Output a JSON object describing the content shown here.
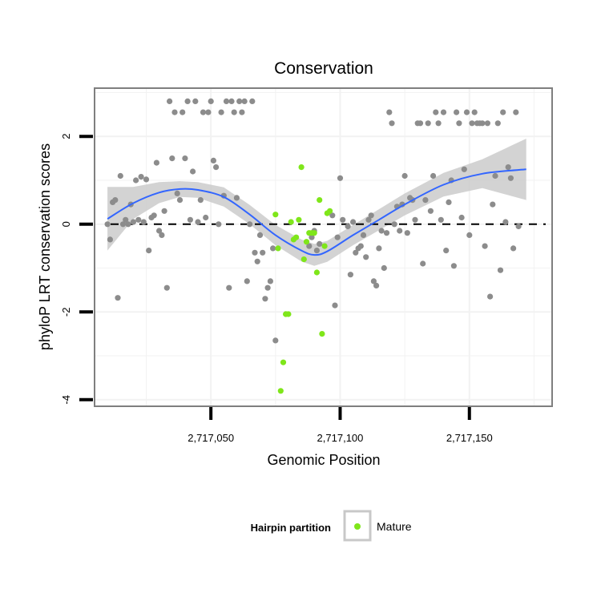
{
  "chart_data": {
    "type": "scatter",
    "title": "Conservation",
    "xlabel": "Genomic Position",
    "ylabel": "phyloP LRT conservation scores",
    "xlim": [
      2717005,
      2717182
    ],
    "ylim": [
      -4.15,
      3.1
    ],
    "x_ticks": [
      2717050,
      2717100,
      2717150
    ],
    "x_tick_labels": [
      "2,717,050",
      "2,717,100",
      "2,717,150"
    ],
    "y_ticks": [
      -4,
      -2,
      0,
      2
    ],
    "y_tick_labels": [
      "-4",
      "-2",
      "0",
      "2"
    ],
    "grid": true,
    "reference_line": {
      "y": 0,
      "style": "dashed",
      "color": "#000000"
    },
    "colors": {
      "background_points": "#8c8c8c",
      "mature_points": "#7fe61a",
      "smooth_line": "#3366ff",
      "confidence_band": "#c8c8c8"
    },
    "legend": {
      "title": "Hairpin partition",
      "placement": "bottom",
      "entries": [
        {
          "label": "Mature",
          "color": "#7fe61a"
        }
      ]
    },
    "series": [
      {
        "color": "#8c8c8c",
        "points": [
          [
            2717010,
            0.0
          ],
          [
            2717011,
            -0.35
          ],
          [
            2717012,
            0.5
          ],
          [
            2717013,
            0.55
          ],
          [
            2717014,
            -1.68
          ],
          [
            2717015,
            1.1
          ],
          [
            2717016,
            0.0
          ],
          [
            2717017,
            0.1
          ],
          [
            2717018,
            0.0
          ],
          [
            2717019,
            0.45
          ],
          [
            2717020,
            0.05
          ],
          [
            2717021,
            1.0
          ],
          [
            2717022,
            0.1
          ],
          [
            2717023,
            1.08
          ],
          [
            2717024,
            0.05
          ],
          [
            2717025,
            1.02
          ],
          [
            2717026,
            -0.6
          ],
          [
            2717027,
            0.15
          ],
          [
            2717028,
            0.2
          ],
          [
            2717029,
            1.4
          ],
          [
            2717030,
            -0.15
          ],
          [
            2717031,
            -0.25
          ],
          [
            2717032,
            0.3
          ],
          [
            2717033,
            -1.45
          ],
          [
            2717034,
            2.8
          ],
          [
            2717035,
            1.5
          ],
          [
            2717036,
            2.55
          ],
          [
            2717037,
            0.7
          ],
          [
            2717038,
            0.55
          ],
          [
            2717039,
            2.55
          ],
          [
            2717040,
            1.5
          ],
          [
            2717041,
            2.8
          ],
          [
            2717042,
            0.1
          ],
          [
            2717043,
            1.2
          ],
          [
            2717044,
            2.8
          ],
          [
            2717045,
            0.05
          ],
          [
            2717046,
            0.55
          ],
          [
            2717047,
            2.55
          ],
          [
            2717048,
            0.15
          ],
          [
            2717049,
            2.55
          ],
          [
            2717050,
            2.8
          ],
          [
            2717051,
            1.45
          ],
          [
            2717052,
            1.3
          ],
          [
            2717053,
            0.0
          ],
          [
            2717054,
            2.55
          ],
          [
            2717055,
            0.65
          ],
          [
            2717056,
            2.8
          ],
          [
            2717057,
            -1.45
          ],
          [
            2717058,
            2.8
          ],
          [
            2717059,
            2.55
          ],
          [
            2717060,
            0.6
          ],
          [
            2717061,
            2.8
          ],
          [
            2717062,
            2.55
          ],
          [
            2717063,
            2.8
          ],
          [
            2717064,
            -1.3
          ],
          [
            2717065,
            0.0
          ],
          [
            2717066,
            2.8
          ],
          [
            2717067,
            -0.65
          ],
          [
            2717068,
            -0.85
          ],
          [
            2717069,
            -0.25
          ],
          [
            2717070,
            -0.65
          ],
          [
            2717071,
            -1.7
          ],
          [
            2717072,
            -1.45
          ],
          [
            2717073,
            -1.3
          ],
          [
            2717074,
            -0.55
          ],
          [
            2717075,
            -2.65
          ],
          [
            2717088,
            -0.5
          ],
          [
            2717089,
            -0.3
          ],
          [
            2717090,
            -0.15
          ],
          [
            2717091,
            -0.6
          ],
          [
            2717092,
            -0.45
          ],
          [
            2717097,
            0.2
          ],
          [
            2717098,
            -1.85
          ],
          [
            2717099,
            -0.3
          ],
          [
            2717100,
            1.05
          ],
          [
            2717101,
            0.1
          ],
          [
            2717103,
            -0.05
          ],
          [
            2717104,
            -1.15
          ],
          [
            2717105,
            0.05
          ],
          [
            2717106,
            -0.65
          ],
          [
            2717107,
            -0.55
          ],
          [
            2717108,
            -0.5
          ],
          [
            2717109,
            -0.25
          ],
          [
            2717110,
            -0.75
          ],
          [
            2717111,
            0.1
          ],
          [
            2717112,
            0.2
          ],
          [
            2717113,
            -1.3
          ],
          [
            2717114,
            -1.4
          ],
          [
            2717115,
            -0.55
          ],
          [
            2717116,
            -0.15
          ],
          [
            2717117,
            -1.0
          ],
          [
            2717118,
            -0.2
          ],
          [
            2717119,
            2.55
          ],
          [
            2717120,
            2.3
          ],
          [
            2717121,
            0.0
          ],
          [
            2717122,
            0.4
          ],
          [
            2717123,
            -0.15
          ],
          [
            2717124,
            0.45
          ],
          [
            2717125,
            1.1
          ],
          [
            2717126,
            -0.2
          ],
          [
            2717127,
            0.6
          ],
          [
            2717128,
            0.55
          ],
          [
            2717129,
            0.1
          ],
          [
            2717130,
            2.3
          ],
          [
            2717131,
            2.3
          ],
          [
            2717132,
            -0.9
          ],
          [
            2717133,
            0.55
          ],
          [
            2717134,
            2.3
          ],
          [
            2717135,
            0.3
          ],
          [
            2717136,
            1.1
          ],
          [
            2717137,
            2.55
          ],
          [
            2717138,
            2.3
          ],
          [
            2717139,
            0.1
          ],
          [
            2717140,
            2.55
          ],
          [
            2717141,
            -0.6
          ],
          [
            2717142,
            0.5
          ],
          [
            2717143,
            1.0
          ],
          [
            2717144,
            -0.95
          ],
          [
            2717145,
            2.55
          ],
          [
            2717146,
            2.3
          ],
          [
            2717147,
            0.15
          ],
          [
            2717148,
            1.25
          ],
          [
            2717149,
            2.55
          ],
          [
            2717150,
            -0.25
          ],
          [
            2717151,
            2.3
          ],
          [
            2717152,
            2.55
          ],
          [
            2717153,
            2.3
          ],
          [
            2717154,
            2.3
          ],
          [
            2717155,
            2.3
          ],
          [
            2717156,
            -0.5
          ],
          [
            2717157,
            2.3
          ],
          [
            2717158,
            -1.65
          ],
          [
            2717159,
            0.45
          ],
          [
            2717160,
            1.1
          ],
          [
            2717161,
            2.3
          ],
          [
            2717162,
            -1.05
          ],
          [
            2717163,
            2.55
          ],
          [
            2717164,
            0.05
          ],
          [
            2717165,
            1.3
          ],
          [
            2717166,
            1.05
          ],
          [
            2717167,
            -0.55
          ],
          [
            2717168,
            2.55
          ],
          [
            2717169,
            -0.05
          ]
        ]
      },
      {
        "name": "Mature",
        "color": "#7fe61a",
        "points": [
          [
            2717076,
            -0.55
          ],
          [
            2717077,
            -3.8
          ],
          [
            2717078,
            -3.15
          ],
          [
            2717079,
            -2.05
          ],
          [
            2717080,
            -2.05
          ],
          [
            2717081,
            0.05
          ],
          [
            2717082,
            -0.35
          ],
          [
            2717083,
            -0.3
          ],
          [
            2717084,
            0.1
          ],
          [
            2717085,
            1.3
          ],
          [
            2717086,
            -0.8
          ],
          [
            2717087,
            -0.4
          ],
          [
            2717088,
            -0.2
          ],
          [
            2717089,
            -0.2
          ],
          [
            2717090,
            -0.2
          ],
          [
            2717091,
            -1.1
          ],
          [
            2717092,
            0.55
          ],
          [
            2717093,
            -2.5
          ],
          [
            2717094,
            -0.5
          ],
          [
            2717095,
            0.25
          ],
          [
            2717096,
            0.3
          ],
          [
            2717075,
            0.22
          ],
          [
            2717079,
            -2.05
          ]
        ]
      }
    ],
    "smooth": {
      "x": [
        2717010,
        2717020,
        2717030,
        2717038,
        2717045,
        2717055,
        2717065,
        2717075,
        2717085,
        2717090,
        2717095,
        2717105,
        2717115,
        2717125,
        2717140,
        2717155,
        2717172
      ],
      "y": [
        0.12,
        0.48,
        0.72,
        0.8,
        0.78,
        0.62,
        0.22,
        -0.25,
        -0.6,
        -0.7,
        -0.62,
        -0.25,
        0.1,
        0.45,
        0.9,
        1.15,
        1.25
      ],
      "lo": [
        -0.6,
        0.12,
        0.48,
        0.62,
        0.6,
        0.4,
        0.0,
        -0.48,
        -0.85,
        -0.95,
        -0.86,
        -0.48,
        -0.14,
        0.2,
        0.63,
        0.82,
        0.55
      ],
      "hi": [
        0.85,
        0.85,
        0.96,
        0.98,
        0.96,
        0.84,
        0.44,
        -0.02,
        -0.35,
        -0.45,
        -0.38,
        -0.02,
        0.34,
        0.7,
        1.17,
        1.48,
        1.95
      ]
    }
  }
}
